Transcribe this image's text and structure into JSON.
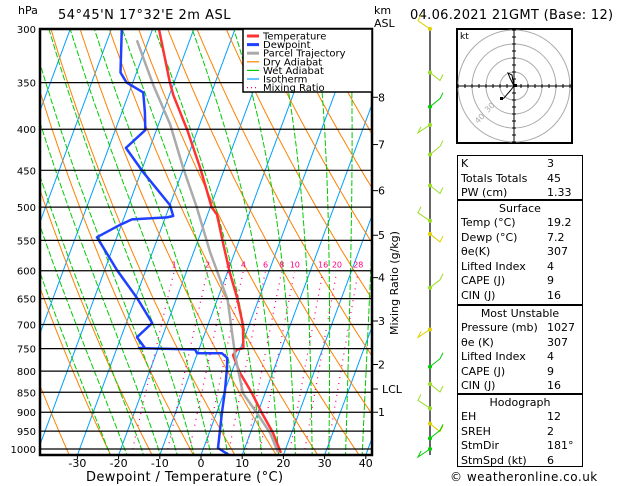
{
  "header": {
    "pressure_unit": "hPa",
    "location": "54°45'N  17°32'E  2m  ASL",
    "height_unit_line1": "km",
    "height_unit_line2": "ASL",
    "datetime": "04.06.2021  21GMT  (Base: 12)"
  },
  "footer": {
    "copyright": "© weatheronline.co.uk"
  },
  "chart_data": {
    "type": "line",
    "subtype": "skew-T log-p",
    "xlabel": "Dewpoint / Temperature (°C)",
    "ylabel_left": "hPa",
    "ylabel_right": "Mixing Ratio (g/kg)",
    "pressure_ticks": [
      300,
      350,
      400,
      450,
      500,
      550,
      600,
      650,
      700,
      750,
      800,
      850,
      900,
      950,
      1000
    ],
    "temperature_ticks": [
      -30,
      -20,
      -10,
      0,
      10,
      20,
      30,
      40
    ],
    "xlim": [
      -38,
      41
    ],
    "ylim_hpa": [
      1025,
      300
    ],
    "height_ticks_km": [
      {
        "label": "8",
        "hpa": 365
      },
      {
        "label": "7",
        "hpa": 418
      },
      {
        "label": "6",
        "hpa": 477
      },
      {
        "label": "5",
        "hpa": 542
      },
      {
        "label": "4",
        "hpa": 612
      },
      {
        "label": "3",
        "hpa": 693
      },
      {
        "label": "2",
        "hpa": 785
      },
      {
        "label": "LCL",
        "hpa": 842
      },
      {
        "label": "1",
        "hpa": 900
      }
    ],
    "mixing_ratio_labels": [
      "1",
      "2",
      "3",
      "4",
      "6",
      "8",
      "10",
      "16",
      "20",
      "28"
    ],
    "mixing_ratio_values": [
      1,
      2,
      3,
      4,
      6,
      8,
      10,
      16,
      20,
      28
    ],
    "legend": {
      "placement": "top-right",
      "items": [
        {
          "label": "Temperature",
          "color": "#ff3333",
          "style": "thick"
        },
        {
          "label": "Dewpoint",
          "color": "#2040ff",
          "style": "thick"
        },
        {
          "label": "Parcel Trajectory",
          "color": "#aaaaaa",
          "style": "thick"
        },
        {
          "label": "Dry Adiabat",
          "color": "#ff8000",
          "style": "thin"
        },
        {
          "label": "Wet Adiabat",
          "color": "#00cc00",
          "style": "thin"
        },
        {
          "label": "Isotherm",
          "color": "#00a0ff",
          "style": "thin"
        },
        {
          "label": "Mixing Ratio",
          "color": "#ff0080",
          "style": "dotted"
        }
      ]
    },
    "series": [
      {
        "name": "Temperature",
        "color": "#ff3333",
        "points": [
          [
            300,
            -48.5
          ],
          [
            350,
            -41
          ],
          [
            363,
            -39
          ],
          [
            401,
            -32.5
          ],
          [
            449,
            -25.7
          ],
          [
            500,
            -19.7
          ],
          [
            511,
            -17.7
          ],
          [
            553,
            -13.8
          ],
          [
            602,
            -9.5
          ],
          [
            649,
            -5.3
          ],
          [
            701,
            -1.5
          ],
          [
            749,
            0.7
          ],
          [
            752,
            -0.7
          ],
          [
            764,
            -1.2
          ],
          [
            802,
            1.9
          ],
          [
            852,
            6.8
          ],
          [
            902,
            11
          ],
          [
            955,
            15.5
          ],
          [
            1011,
            19.2
          ]
        ]
      },
      {
        "name": "Dewpoint",
        "color": "#2040ff",
        "points": [
          [
            300,
            -57.5
          ],
          [
            340,
            -53.9
          ],
          [
            350,
            -51.5
          ],
          [
            360,
            -46.6
          ],
          [
            381,
            -44.4
          ],
          [
            401,
            -42.7
          ],
          [
            422,
            -45.8
          ],
          [
            452,
            -39.5
          ],
          [
            497,
            -30
          ],
          [
            513,
            -28.2
          ],
          [
            515,
            -29.6
          ],
          [
            518,
            -37.9
          ],
          [
            526,
            -40.3
          ],
          [
            545,
            -44.8
          ],
          [
            553,
            -43.6
          ],
          [
            599,
            -37
          ],
          [
            649,
            -29.6
          ],
          [
            697,
            -23.7
          ],
          [
            726,
            -26.1
          ],
          [
            749,
            -23.2
          ],
          [
            749,
            -24.7
          ],
          [
            752,
            -10.9
          ],
          [
            760,
            -10.1
          ],
          [
            760,
            -4.1
          ],
          [
            770,
            -2.4
          ],
          [
            790,
            -1.6
          ],
          [
            845,
            0
          ],
          [
            902,
            1.3
          ],
          [
            997,
            3.5
          ],
          [
            1023,
            7.7
          ]
        ]
      },
      {
        "name": "Parcel Trajectory",
        "color": "#aaaaaa",
        "points": [
          [
            310,
            -52.8
          ],
          [
            352,
            -44.9
          ],
          [
            395,
            -37.1
          ],
          [
            447,
            -30.1
          ],
          [
            500,
            -23.3
          ],
          [
            569,
            -16
          ],
          [
            652,
            -7.5
          ],
          [
            764,
            -0.7
          ],
          [
            852,
            4.6
          ],
          [
            902,
            9.8
          ],
          [
            955,
            14.8
          ],
          [
            1009,
            18.4
          ]
        ]
      }
    ],
    "wind_profile": [
      {
        "hpa": 300,
        "color": "#e0d000"
      },
      {
        "hpa": 340,
        "color": "#99dd22"
      },
      {
        "hpa": 375,
        "color": "#00cc00"
      },
      {
        "hpa": 395,
        "color": "#99dd22"
      },
      {
        "hpa": 430,
        "color": "#99dd22"
      },
      {
        "hpa": 470,
        "color": "#99dd22"
      },
      {
        "hpa": 520,
        "color": "#99dd22"
      },
      {
        "hpa": 540,
        "color": "#e0d000"
      },
      {
        "hpa": 630,
        "color": "#99dd22"
      },
      {
        "hpa": 710,
        "color": "#e0d000"
      },
      {
        "hpa": 790,
        "color": "#00cc00"
      },
      {
        "hpa": 830,
        "color": "#99dd22"
      },
      {
        "hpa": 890,
        "color": "#99dd22"
      },
      {
        "hpa": 930,
        "color": "#e0d000"
      },
      {
        "hpa": 970,
        "color": "#00cc00"
      },
      {
        "hpa": 1000,
        "color": "#00cc00"
      }
    ],
    "grid": true
  },
  "hodograph": {
    "unit_label": "kt",
    "ring_labels": [
      "30",
      "40"
    ]
  },
  "indices": {
    "rows": [
      {
        "label": "K",
        "value": "3"
      },
      {
        "label": "Totals Totals",
        "value": "45"
      },
      {
        "label": "PW (cm)",
        "value": "1.33"
      }
    ]
  },
  "surface": {
    "title": "Surface",
    "rows": [
      {
        "label": "Temp (°C)",
        "value": "19.2"
      },
      {
        "label": "Dewp (°C)",
        "value": "7.2"
      },
      {
        "label": "θe(K)",
        "value": "307"
      },
      {
        "label": "Lifted Index",
        "value": "4"
      },
      {
        "label": "CAPE (J)",
        "value": "9"
      },
      {
        "label": "CIN (J)",
        "value": "16"
      }
    ]
  },
  "most_unstable": {
    "title": "Most Unstable",
    "rows": [
      {
        "label": "Pressure (mb)",
        "value": "1027"
      },
      {
        "label": "θe (K)",
        "value": "307"
      },
      {
        "label": "Lifted Index",
        "value": "4"
      },
      {
        "label": "CAPE (J)",
        "value": "9"
      },
      {
        "label": "CIN (J)",
        "value": "16"
      }
    ]
  },
  "hodograph_table": {
    "title": "Hodograph",
    "rows": [
      {
        "label": "EH",
        "value": "12"
      },
      {
        "label": "SREH",
        "value": "2"
      },
      {
        "label": "StmDir",
        "value": "181°"
      },
      {
        "label": "StmSpd (kt)",
        "value": "6"
      }
    ]
  }
}
